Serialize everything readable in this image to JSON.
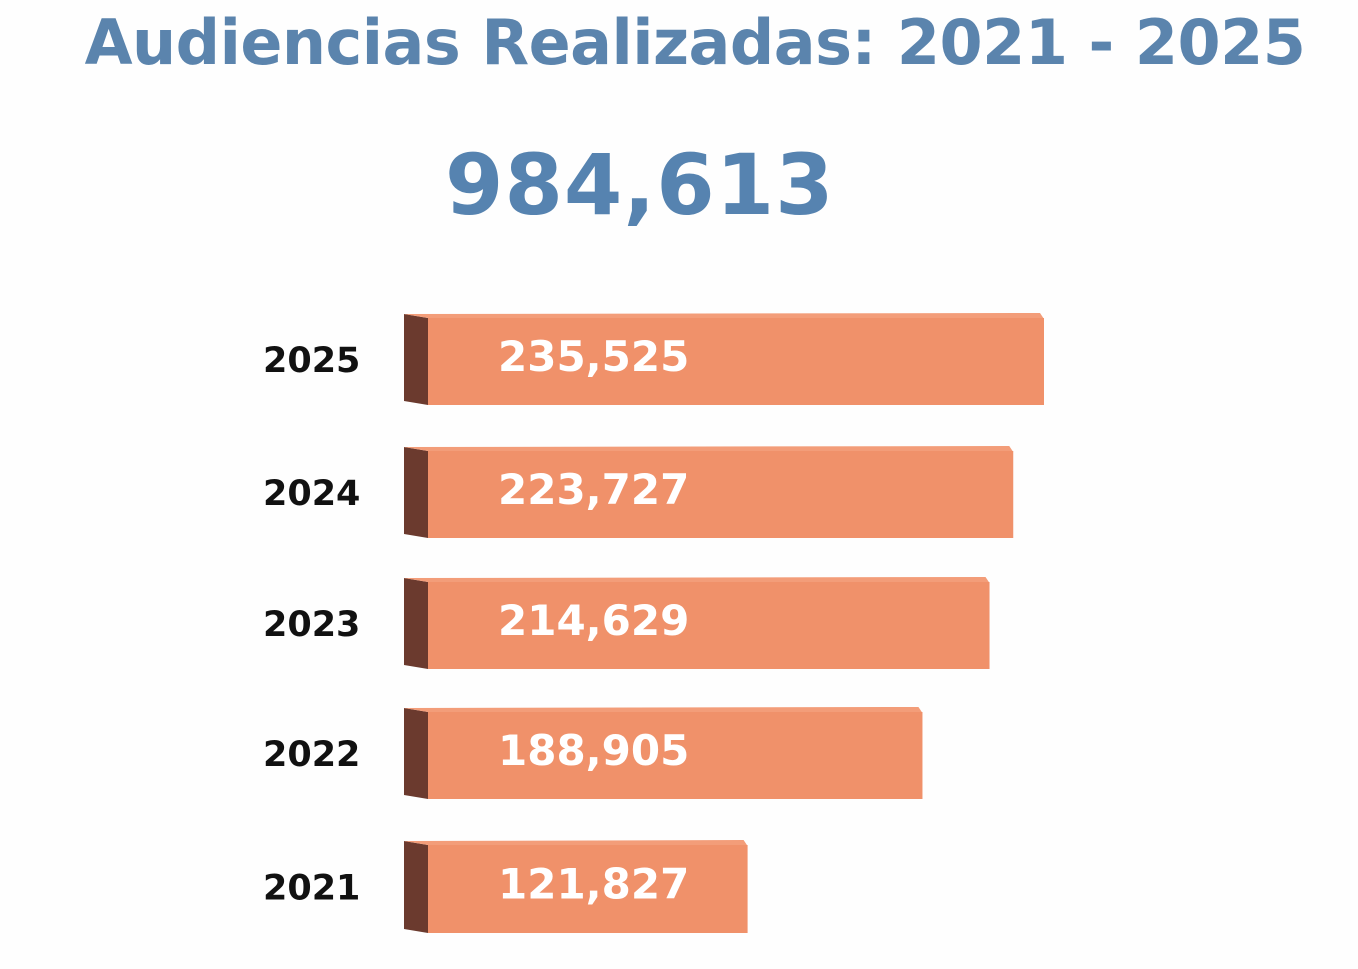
{
  "title": "Audiencias Realizadas: 2021 - 2025",
  "total": "984,613",
  "chart_data": {
    "type": "bar",
    "orientation": "horizontal",
    "title": "Audiencias Realizadas: 2021 - 2025",
    "categories": [
      "2025",
      "2024",
      "2023",
      "2022",
      "2021"
    ],
    "values": [
      235525,
      223727,
      214629,
      188905,
      121827
    ],
    "value_labels": [
      "235,525",
      "223,727",
      "214,629",
      "188,905",
      "121,827"
    ],
    "xlabel": "",
    "ylabel": "",
    "grid": false,
    "colors": {
      "bar_face": "#f0916a",
      "bar_side": "#6b3a2e",
      "title": "#5b84ad",
      "total": "#5683b0"
    }
  }
}
